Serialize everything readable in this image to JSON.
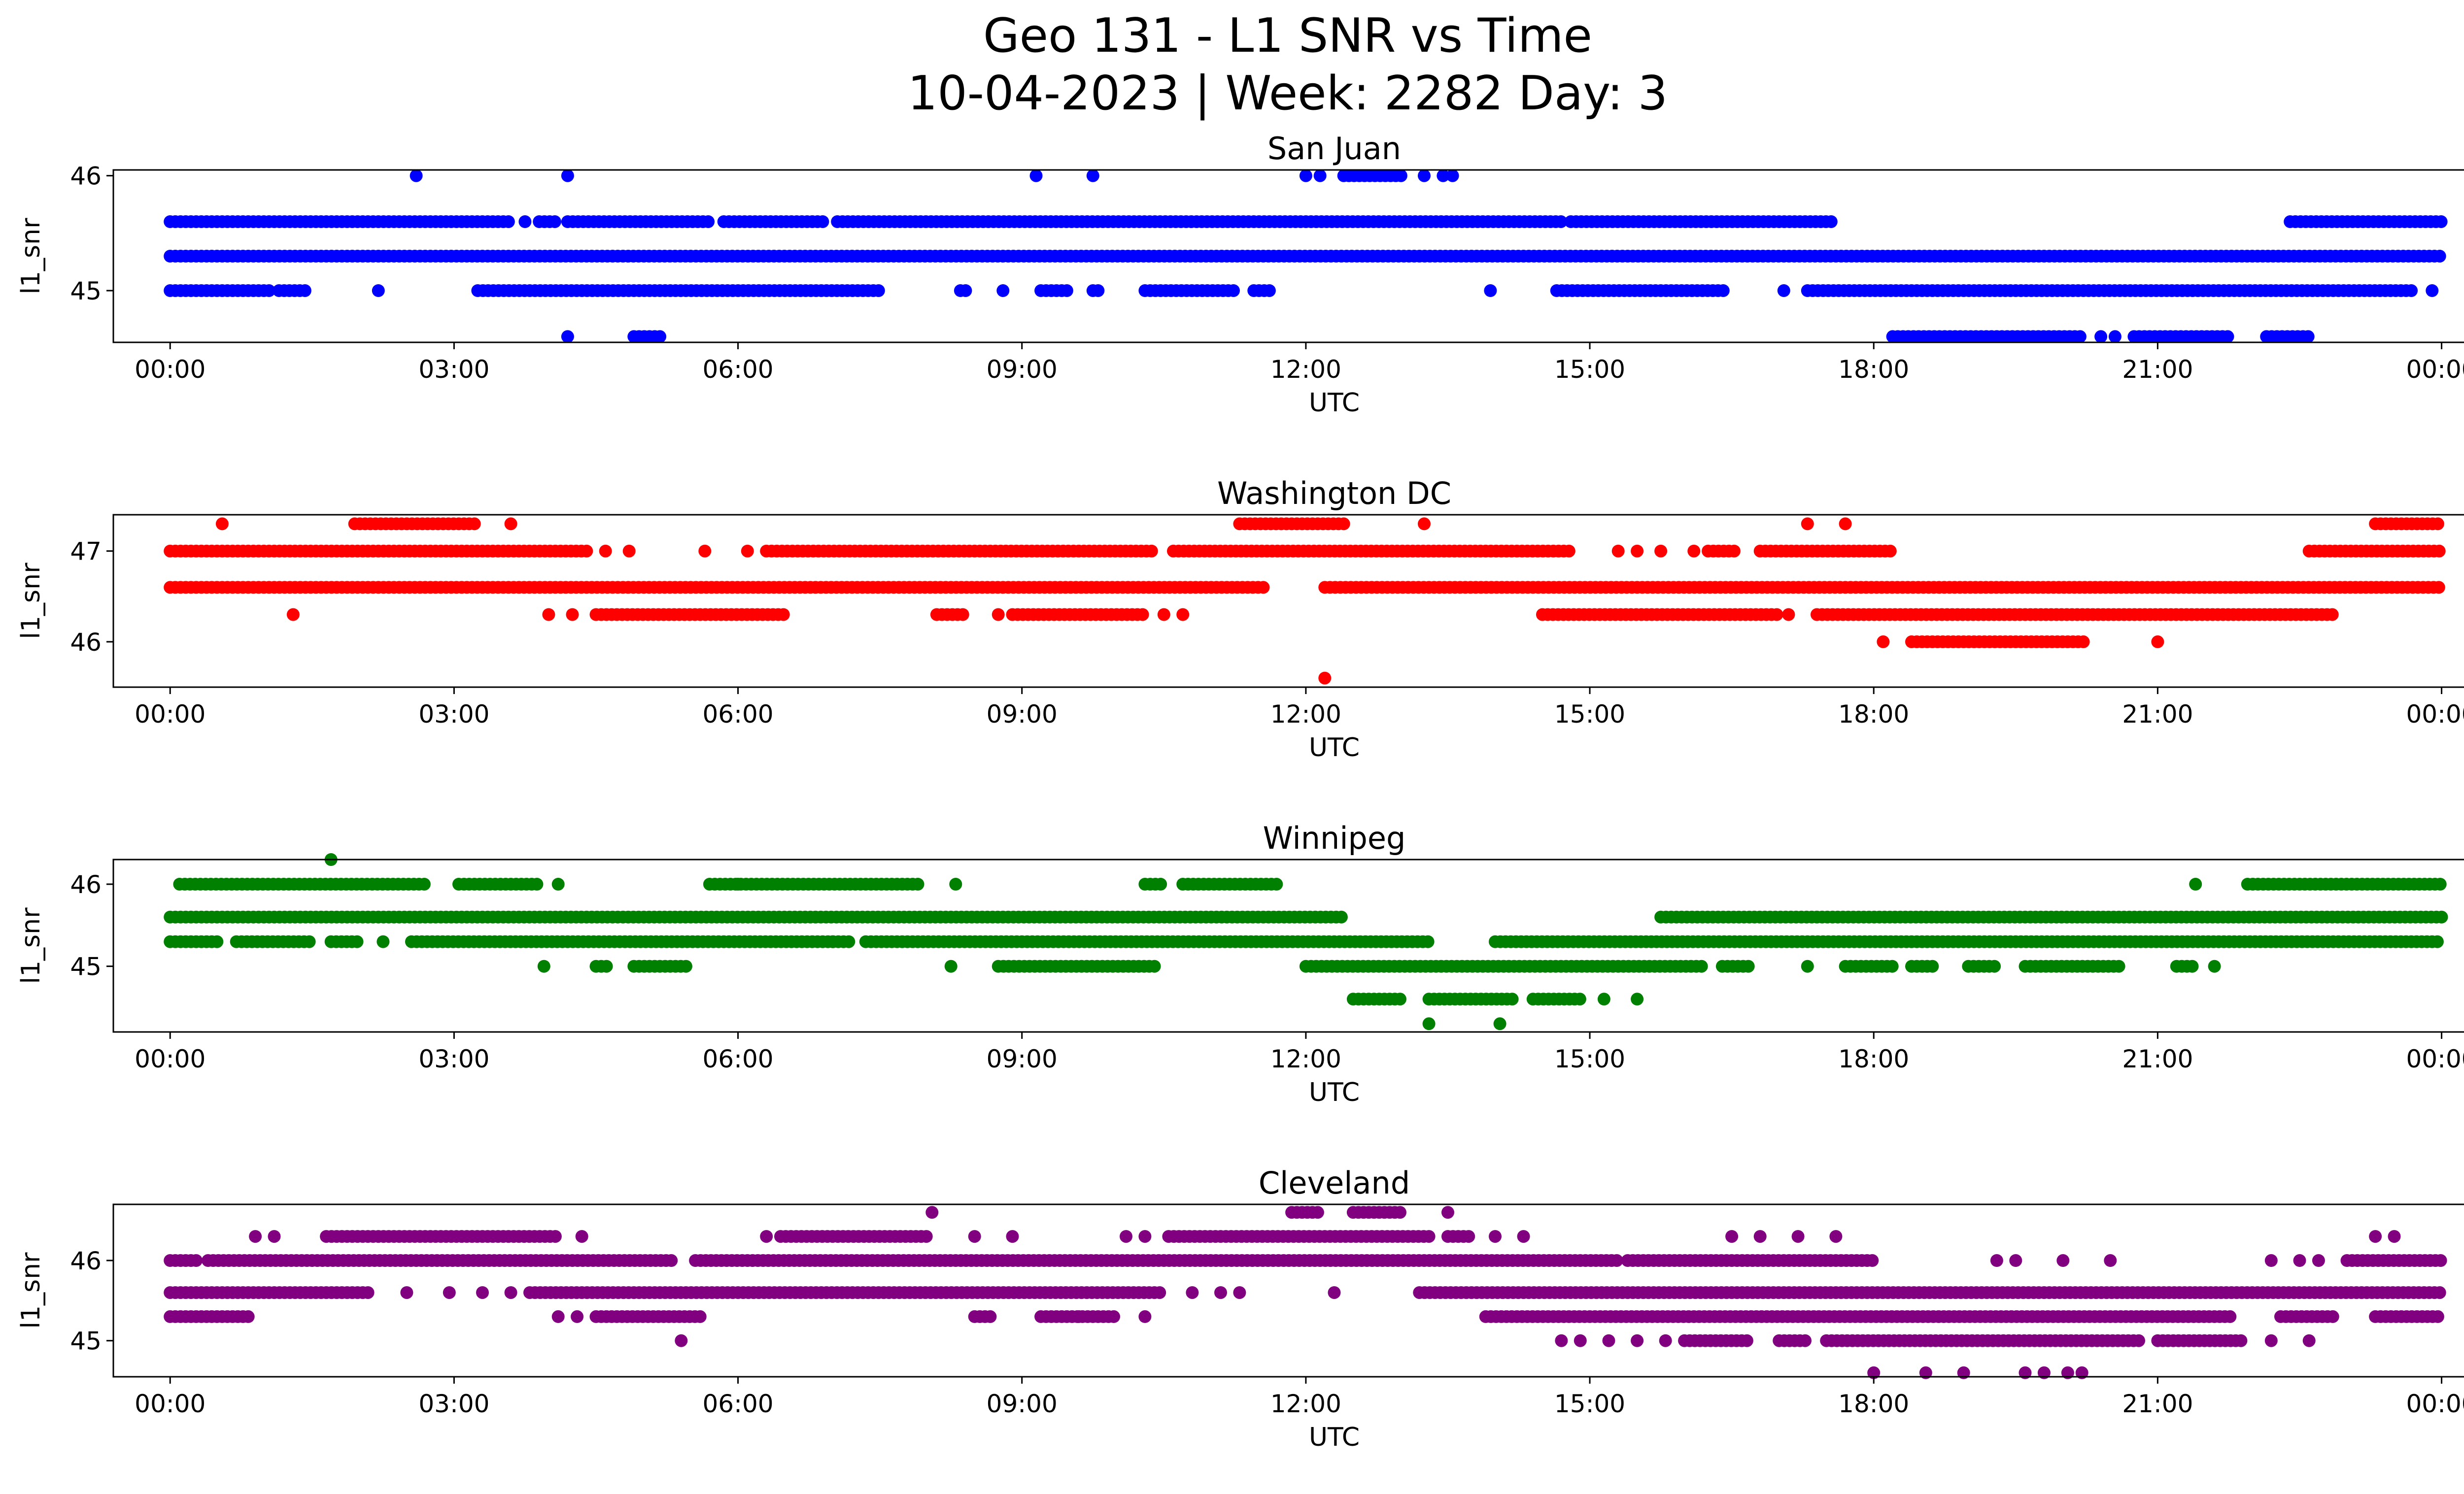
{
  "figure": {
    "title_line1": "Geo 131 - L1 SNR vs Time",
    "title_line2": "10-04-2023 | Week: 2282 Day: 3"
  },
  "chart_data": [
    {
      "type": "scatter",
      "title": "San Juan",
      "xlabel": "UTC",
      "ylabel": "l1_snr",
      "color": "#0000ff",
      "x_unit": "hours",
      "xlim": [
        -0.6,
        25.2
      ],
      "xticks": [
        "00:00",
        "03:00",
        "06:00",
        "09:00",
        "12:00",
        "15:00",
        "18:00",
        "21:00",
        "00:00"
      ],
      "ylim": [
        44.55,
        46.05
      ],
      "yticks": [
        45,
        46
      ],
      "levels": [
        {
          "y": 46.0,
          "points": [
            2.6,
            4.2,
            9.15,
            9.75,
            12.0,
            12.15
          ],
          "ranges": [
            [
              12.4,
              13.05
            ]
          ],
          "extra": [
            13.25,
            13.45,
            13.55
          ]
        },
        {
          "y": 45.6,
          "ranges": [
            [
              0.0,
              3.6
            ],
            [
              3.9,
              4.1
            ],
            [
              4.2,
              5.7
            ],
            [
              5.85,
              6.9
            ],
            [
              7.05,
              14.7
            ],
            [
              14.8,
              17.6
            ],
            [
              22.4,
              24.0
            ]
          ],
          "extra": [
            3.75
          ]
        },
        {
          "y": 45.3,
          "ranges": [
            [
              0.0,
              24.0
            ]
          ]
        },
        {
          "y": 45.0,
          "ranges": [
            [
              0.0,
              1.05
            ],
            [
              1.15,
              1.45
            ],
            [
              3.25,
              7.5
            ],
            [
              8.35,
              8.45
            ],
            [
              9.2,
              9.5
            ],
            [
              9.75,
              9.85
            ],
            [
              10.3,
              11.25
            ],
            [
              11.45,
              11.65
            ],
            [
              14.65,
              16.45
            ],
            [
              17.3,
              23.7
            ]
          ],
          "extra": [
            2.2,
            8.8,
            13.95,
            17.05,
            23.9
          ]
        },
        {
          "y": 44.6,
          "ranges": [
            [
              4.9,
              5.2
            ],
            [
              18.2,
              20.2
            ],
            [
              20.75,
              21.75
            ],
            [
              22.15,
              22.6
            ]
          ],
          "extra": [
            4.2,
            20.4,
            20.55
          ]
        }
      ]
    },
    {
      "type": "scatter",
      "title": "Washington DC",
      "xlabel": "UTC",
      "ylabel": "l1_snr",
      "color": "#ff0000",
      "x_unit": "hours",
      "xlim": [
        -0.6,
        25.2
      ],
      "xticks": [
        "00:00",
        "03:00",
        "06:00",
        "09:00",
        "12:00",
        "15:00",
        "18:00",
        "21:00",
        "00:00"
      ],
      "ylim": [
        45.5,
        47.4
      ],
      "yticks": [
        46,
        47
      ],
      "levels": [
        {
          "y": 47.3,
          "points": [
            0.55,
            3.6,
            13.25,
            17.3,
            17.7
          ],
          "ranges": [
            [
              1.95,
              3.25
            ],
            [
              11.3,
              12.45
            ],
            [
              23.3,
              24.0
            ]
          ]
        },
        {
          "y": 47.0,
          "ranges": [
            [
              0.0,
              4.4
            ],
            [
              6.3,
              10.4
            ],
            [
              10.6,
              14.8
            ],
            [
              16.25,
              16.55
            ],
            [
              16.8,
              18.2
            ],
            [
              22.6,
              24.0
            ]
          ],
          "extra": [
            4.6,
            4.85,
            5.65,
            6.1,
            15.3,
            15.5,
            15.75,
            16.1
          ]
        },
        {
          "y": 46.6,
          "ranges": [
            [
              0.0,
              11.6
            ],
            [
              12.2,
              24.0
            ]
          ]
        },
        {
          "y": 46.3,
          "ranges": [
            [
              4.5,
              6.5
            ],
            [
              8.1,
              8.4
            ],
            [
              8.9,
              10.3
            ],
            [
              14.5,
              17.0
            ],
            [
              17.4,
              22.85
            ]
          ],
          "extra": [
            1.3,
            4.0,
            4.25,
            8.75,
            10.5,
            10.7,
            17.1
          ]
        },
        {
          "y": 46.0,
          "ranges": [
            [
              18.4,
              20.25
            ]
          ],
          "extra": [
            18.1,
            21.0
          ]
        },
        {
          "y": 45.6,
          "points": [
            12.2
          ]
        }
      ]
    },
    {
      "type": "scatter",
      "title": "Winnipeg",
      "xlabel": "UTC",
      "ylabel": "l1_snr",
      "color": "#008000",
      "x_unit": "hours",
      "xlim": [
        -0.6,
        25.2
      ],
      "xticks": [
        "00:00",
        "03:00",
        "06:00",
        "09:00",
        "12:00",
        "15:00",
        "18:00",
        "21:00",
        "00:00"
      ],
      "ylim": [
        44.2,
        46.3
      ],
      "yticks": [
        45,
        46
      ],
      "levels": [
        {
          "y": 46.3,
          "points": [
            1.7
          ]
        },
        {
          "y": 46.0,
          "ranges": [
            [
              0.1,
              2.7
            ],
            [
              3.05,
              3.9
            ],
            [
              5.7,
              7.9
            ],
            [
              10.3,
              10.5
            ],
            [
              10.7,
              11.7
            ],
            [
              21.95,
              24.0
            ]
          ],
          "extra": [
            4.1,
            8.3,
            6.0,
            21.4
          ]
        },
        {
          "y": 45.6,
          "ranges": [
            [
              0.0,
              12.4
            ],
            [
              15.75,
              24.0
            ]
          ]
        },
        {
          "y": 45.3,
          "ranges": [
            [
              0.0,
              0.5
            ],
            [
              0.7,
              1.5
            ],
            [
              1.7,
              2.0
            ],
            [
              2.55,
              7.2
            ],
            [
              7.35,
              13.3
            ],
            [
              14.0,
              24.0
            ]
          ],
          "extra": [
            2.25,
            7.0
          ]
        },
        {
          "y": 45.0,
          "ranges": [
            [
              4.5,
              4.65
            ],
            [
              4.9,
              5.5
            ],
            [
              8.75,
              10.4
            ],
            [
              12.0,
              16.2
            ],
            [
              16.4,
              16.7
            ],
            [
              17.7,
              18.2
            ],
            [
              18.4,
              18.65
            ],
            [
              19.0,
              19.3
            ],
            [
              19.6,
              20.6
            ],
            [
              21.2,
              21.4
            ]
          ],
          "extra": [
            3.95,
            8.25,
            17.3,
            21.6
          ]
        },
        {
          "y": 44.6,
          "ranges": [
            [
              12.5,
              13.0
            ],
            [
              13.3,
              14.2
            ],
            [
              14.4,
              14.9
            ]
          ],
          "extra": [
            15.15,
            15.5
          ]
        },
        {
          "y": 44.3,
          "points": [
            13.3,
            14.05
          ]
        }
      ]
    },
    {
      "type": "scatter",
      "title": "Cleveland",
      "xlabel": "UTC",
      "ylabel": "l1_snr",
      "color": "#800080",
      "x_unit": "hours",
      "xlim": [
        -0.6,
        25.2
      ],
      "xticks": [
        "00:00",
        "03:00",
        "06:00",
        "09:00",
        "12:00",
        "15:00",
        "18:00",
        "21:00",
        "00:00"
      ],
      "ylim": [
        44.55,
        46.7
      ],
      "yticks": [
        45,
        46
      ],
      "levels": [
        {
          "y": 46.6,
          "points": [
            8.05,
            13.5
          ],
          "ranges": [
            [
              11.85,
              12.15
            ],
            [
              12.5,
              13.0
            ]
          ]
        },
        {
          "y": 46.3,
          "ranges": [
            [
              1.65,
              4.1
            ],
            [
              6.45,
              8.0
            ],
            [
              10.55,
              13.3
            ],
            [
              13.5,
              13.75
            ]
          ],
          "extra": [
            0.9,
            1.1,
            4.35,
            6.3,
            8.5,
            8.9,
            10.1,
            10.3,
            14.0,
            14.3,
            16.5,
            16.8,
            17.2,
            17.6,
            23.3,
            23.5
          ]
        },
        {
          "y": 46.0,
          "ranges": [
            [
              0.0,
              0.3
            ],
            [
              0.4,
              5.3
            ],
            [
              5.55,
              15.3
            ],
            [
              15.4,
              18.0
            ],
            [
              23.0,
              24.0
            ]
          ],
          "extra": [
            19.3,
            19.5,
            20.0,
            20.5,
            22.2,
            22.5,
            22.7
          ]
        },
        {
          "y": 45.6,
          "ranges": [
            [
              0.0,
              2.1
            ],
            [
              3.8,
              10.5
            ],
            [
              13.2,
              24.0
            ]
          ],
          "extra": [
            2.5,
            2.95,
            3.3,
            3.6,
            10.8,
            11.1,
            11.3,
            12.3
          ]
        },
        {
          "y": 45.3,
          "ranges": [
            [
              0.0,
              0.85
            ],
            [
              4.5,
              5.6
            ],
            [
              8.5,
              8.7
            ],
            [
              9.2,
              10.0
            ],
            [
              13.9,
              21.8
            ],
            [
              22.3,
              22.9
            ],
            [
              23.3,
              24.0
            ]
          ],
          "extra": [
            4.1,
            4.3,
            9.6,
            10.3
          ]
        },
        {
          "y": 45.0,
          "ranges": [
            [
              16.0,
              16.7
            ],
            [
              17.0,
              17.3
            ],
            [
              17.5,
              20.8
            ],
            [
              21.0,
              21.9
            ]
          ],
          "extra": [
            5.4,
            14.7,
            14.9,
            15.2,
            15.5,
            15.8,
            22.2,
            22.6
          ]
        },
        {
          "y": 44.6,
          "points": [
            18.0,
            18.55,
            18.95,
            19.6,
            19.8,
            20.05,
            20.2
          ]
        }
      ]
    }
  ]
}
